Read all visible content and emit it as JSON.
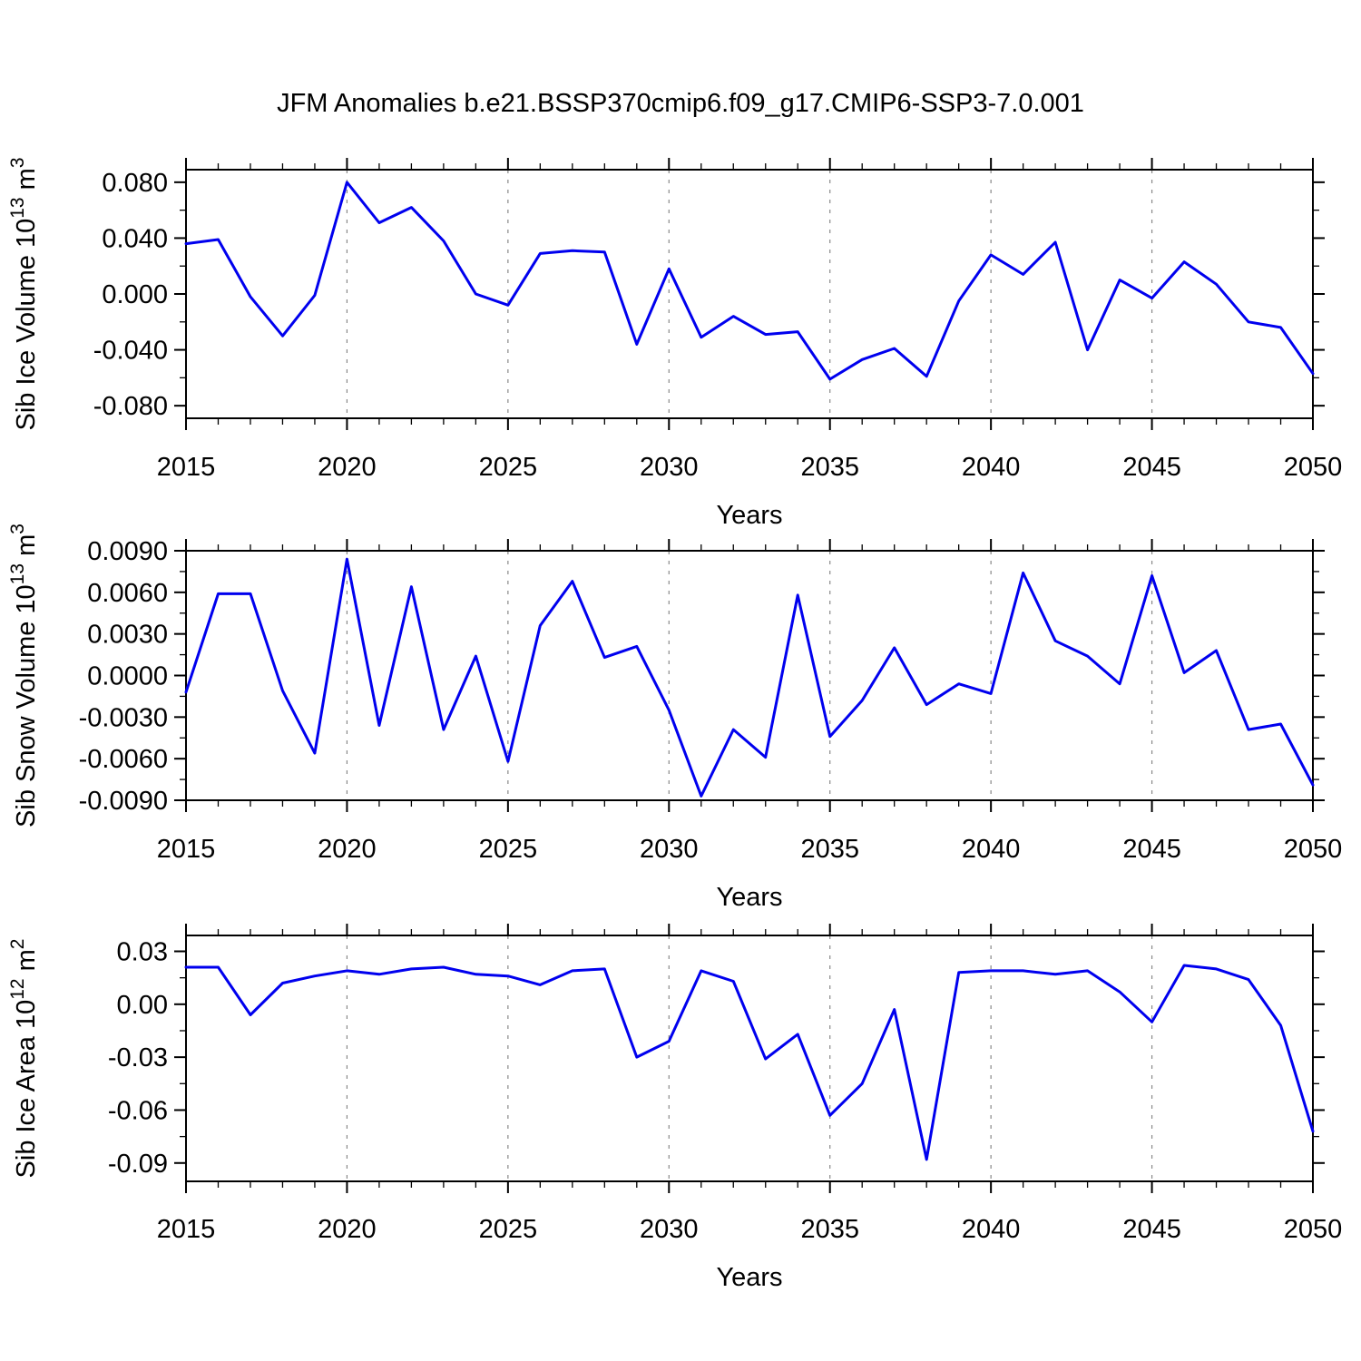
{
  "title": "JFM Anomalies b.e21.BSSP370cmip6.f09_g17.CMIP6-SSP3-7.0.001",
  "colors": {
    "line": "#0000EE",
    "grid": "#888888",
    "frame": "#000000"
  },
  "chart_data": [
    {
      "type": "line",
      "panel": "top",
      "ylabel": "Sib Ice Volume 10^13 m^3",
      "ylabel_rich": [
        {
          "t": "Sib Ice Volume 10"
        },
        {
          "t": "13",
          "sup": true
        },
        {
          "t": " m"
        },
        {
          "t": "3",
          "sup": true
        }
      ],
      "xlabel": "Years",
      "xlim": [
        2015,
        2050
      ],
      "ylim": [
        -0.089,
        0.089
      ],
      "yticks": [
        0.08,
        0.04,
        0.0,
        -0.04,
        -0.08
      ],
      "ytick_labels": [
        "0.080",
        "0.040",
        "0.000",
        "-0.040",
        "-0.080"
      ],
      "yminor_step": 0.02,
      "xticks": [
        2015,
        2020,
        2025,
        2030,
        2035,
        2040,
        2045,
        2050
      ],
      "xtick_labels": [
        "2015",
        "2020",
        "2025",
        "2030",
        "2035",
        "2040",
        "2045",
        "2050"
      ],
      "xminor_step": 1,
      "grid_years": [
        2020,
        2025,
        2030,
        2035,
        2040,
        2045
      ],
      "grid_style": "dashed-vertical",
      "x": [
        2015,
        2016,
        2017,
        2018,
        2019,
        2020,
        2021,
        2022,
        2023,
        2024,
        2025,
        2026,
        2027,
        2028,
        2029,
        2030,
        2031,
        2032,
        2033,
        2034,
        2035,
        2036,
        2037,
        2038,
        2039,
        2040,
        2041,
        2042,
        2043,
        2044,
        2045,
        2046,
        2047,
        2048,
        2049,
        2050
      ],
      "values": [
        0.036,
        0.039,
        -0.002,
        -0.03,
        -0.001,
        0.08,
        0.051,
        0.062,
        0.038,
        0.0,
        -0.008,
        0.029,
        0.031,
        0.03,
        -0.036,
        0.018,
        -0.031,
        -0.016,
        -0.029,
        -0.027,
        -0.061,
        -0.047,
        -0.039,
        -0.059,
        -0.005,
        0.028,
        0.014,
        0.037,
        -0.04,
        0.01,
        -0.003,
        0.023,
        0.007,
        -0.02,
        -0.024,
        -0.057
      ]
    },
    {
      "type": "line",
      "panel": "middle",
      "ylabel": "Sib Snow Volume 10^13 m^3",
      "ylabel_rich": [
        {
          "t": "Sib Snow Volume 10"
        },
        {
          "t": "13",
          "sup": true
        },
        {
          "t": " m"
        },
        {
          "t": "3",
          "sup": true
        }
      ],
      "xlabel": "Years",
      "xlim": [
        2015,
        2050
      ],
      "ylim": [
        -0.009,
        0.009
      ],
      "yticks": [
        0.009,
        0.006,
        0.003,
        0.0,
        -0.003,
        -0.006,
        -0.009
      ],
      "ytick_labels": [
        "0.0090",
        "0.0060",
        "0.0030",
        "0.0000",
        "-0.0030",
        "-0.0060",
        "-0.0090"
      ],
      "yminor_step": 0.0015,
      "xticks": [
        2015,
        2020,
        2025,
        2030,
        2035,
        2040,
        2045,
        2050
      ],
      "xtick_labels": [
        "2015",
        "2020",
        "2025",
        "2030",
        "2035",
        "2040",
        "2045",
        "2050"
      ],
      "xminor_step": 1,
      "grid_years": [
        2020,
        2025,
        2030,
        2035,
        2040,
        2045
      ],
      "grid_style": "dashed-vertical",
      "x": [
        2015,
        2016,
        2017,
        2018,
        2019,
        2020,
        2021,
        2022,
        2023,
        2024,
        2025,
        2026,
        2027,
        2028,
        2029,
        2030,
        2031,
        2032,
        2033,
        2034,
        2035,
        2036,
        2037,
        2038,
        2039,
        2040,
        2041,
        2042,
        2043,
        2044,
        2045,
        2046,
        2047,
        2048,
        2049,
        2050
      ],
      "values": [
        -0.0012,
        0.0059,
        0.0059,
        -0.0011,
        -0.0056,
        0.0084,
        -0.0036,
        0.0064,
        -0.0039,
        0.0014,
        -0.0062,
        0.0036,
        0.0068,
        0.0013,
        0.0021,
        -0.0025,
        -0.0087,
        -0.0039,
        -0.0059,
        0.0058,
        -0.0044,
        -0.0018,
        0.002,
        -0.0021,
        -0.0006,
        -0.0013,
        0.0074,
        0.0025,
        0.0014,
        -0.0006,
        0.0072,
        0.0002,
        0.0018,
        -0.0039,
        -0.0035,
        -0.0079
      ]
    },
    {
      "type": "line",
      "panel": "bottom",
      "ylabel": "Sib Ice Area 10^12 m^2",
      "ylabel_rich": [
        {
          "t": "Sib Ice Area 10"
        },
        {
          "t": "12",
          "sup": true
        },
        {
          "t": " m"
        },
        {
          "t": "2",
          "sup": true
        }
      ],
      "xlabel": "Years",
      "xlim": [
        2015,
        2050
      ],
      "ylim": [
        -0.1004,
        0.039
      ],
      "yticks": [
        0.03,
        0.0,
        -0.03,
        -0.06,
        -0.09
      ],
      "ytick_labels": [
        "0.03",
        "0.00",
        "-0.03",
        "-0.06",
        "-0.09"
      ],
      "yminor_step": 0.015,
      "xticks": [
        2015,
        2020,
        2025,
        2030,
        2035,
        2040,
        2045,
        2050
      ],
      "xtick_labels": [
        "2015",
        "2020",
        "2025",
        "2030",
        "2035",
        "2040",
        "2045",
        "2050"
      ],
      "xminor_step": 1,
      "grid_years": [
        2020,
        2025,
        2030,
        2035,
        2040,
        2045
      ],
      "grid_style": "dashed-vertical",
      "x": [
        2015,
        2016,
        2017,
        2018,
        2019,
        2020,
        2021,
        2022,
        2023,
        2024,
        2025,
        2026,
        2027,
        2028,
        2029,
        2030,
        2031,
        2032,
        2033,
        2034,
        2035,
        2036,
        2037,
        2038,
        2039,
        2040,
        2041,
        2042,
        2043,
        2044,
        2045,
        2046,
        2047,
        2048,
        2049,
        2050
      ],
      "values": [
        0.021,
        0.021,
        -0.006,
        0.012,
        0.016,
        0.019,
        0.017,
        0.02,
        0.021,
        0.017,
        0.016,
        0.011,
        0.019,
        0.02,
        -0.03,
        -0.021,
        0.019,
        0.013,
        -0.031,
        -0.017,
        -0.063,
        -0.045,
        -0.003,
        -0.088,
        0.018,
        0.019,
        0.019,
        0.017,
        0.019,
        0.007,
        -0.01,
        0.022,
        0.02,
        0.014,
        -0.012,
        -0.072
      ]
    }
  ]
}
